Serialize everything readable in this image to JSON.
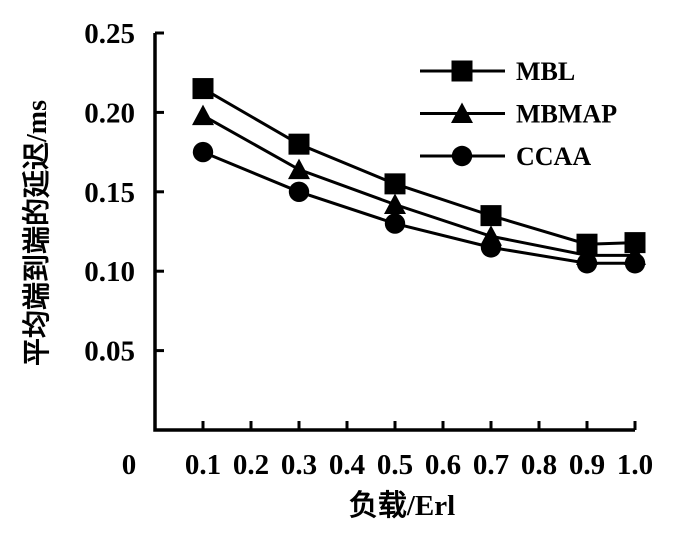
{
  "figure": {
    "background_color": "#ffffff",
    "ink_color": "#000000"
  },
  "chart_data": {
    "type": "line",
    "title": "",
    "xlabel": "负载/Erl",
    "ylabel": "平均端到端的延迟/ms",
    "xlim": [
      0,
      1.0
    ],
    "ylim": [
      0,
      0.25
    ],
    "grid": false,
    "legend_position": "top-right-inside",
    "origin_label": "0",
    "x_ticks": [
      0.1,
      0.2,
      0.3,
      0.4,
      0.5,
      0.6,
      0.7,
      0.8,
      0.9,
      1.0
    ],
    "x_tick_labels": [
      "0.1",
      "0.2",
      "0.3",
      "0.4",
      "0.5",
      "0.6",
      "0.7",
      "0.8",
      "0.9",
      "1.0"
    ],
    "y_ticks": [
      0.05,
      0.1,
      0.15,
      0.2,
      0.25
    ],
    "y_tick_labels": [
      "0.05",
      "0.10",
      "0.15",
      "0.20",
      "0.25"
    ],
    "x": [
      0.1,
      0.3,
      0.5,
      0.7,
      0.9,
      1.0
    ],
    "series": [
      {
        "name": "MBL",
        "marker": "square",
        "color": "#000000",
        "values": [
          0.215,
          0.18,
          0.155,
          0.135,
          0.117,
          0.118
        ]
      },
      {
        "name": "MBMAP",
        "marker": "triangle",
        "color": "#000000",
        "values": [
          0.198,
          0.164,
          0.142,
          0.122,
          0.11,
          0.11
        ]
      },
      {
        "name": "CCAA",
        "marker": "circle",
        "color": "#000000",
        "values": [
          0.175,
          0.15,
          0.13,
          0.115,
          0.105,
          0.105
        ]
      }
    ]
  }
}
